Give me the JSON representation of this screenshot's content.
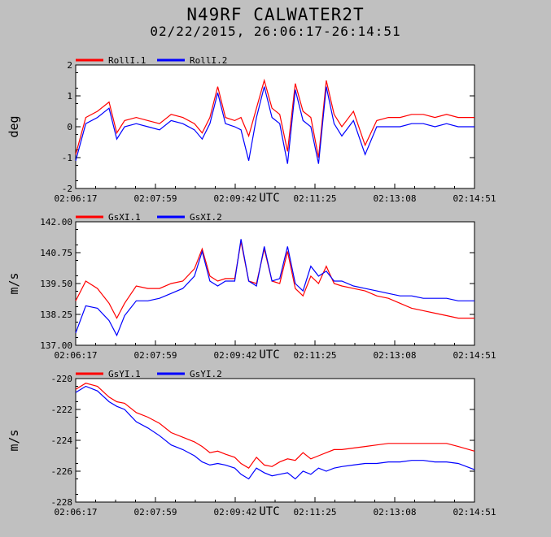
{
  "title": "N49RF CALWATER2T",
  "subtitle": "02/22/2015, 26:06:17-26:14:51",
  "colors": {
    "series1": "#ff0000",
    "series2": "#0000ff",
    "background": "#c0c0c0",
    "plot_bg": "#ffffff"
  },
  "chart_data": [
    {
      "type": "line",
      "ylabel": "deg",
      "xlabel": "UTC",
      "ylim": [
        -2,
        2
      ],
      "yticks": [
        "2",
        "1",
        "0",
        "-1",
        "-2"
      ],
      "xticks": [
        "02:06:17",
        "02:07:59",
        "02:09:42",
        "02:11:25",
        "02:13:08",
        "02:14:51"
      ],
      "grid": false,
      "legend": "top-left",
      "x": [
        "02:06:17",
        "02:06:30",
        "02:06:45",
        "02:07:00",
        "02:07:10",
        "02:07:20",
        "02:07:35",
        "02:07:50",
        "02:08:05",
        "02:08:20",
        "02:08:35",
        "02:08:50",
        "02:09:00",
        "02:09:10",
        "02:09:20",
        "02:09:30",
        "02:09:42",
        "02:09:50",
        "02:10:00",
        "02:10:10",
        "02:10:20",
        "02:10:30",
        "02:10:40",
        "02:10:50",
        "02:11:00",
        "02:11:10",
        "02:11:20",
        "02:11:30",
        "02:11:40",
        "02:11:50",
        "02:12:00",
        "02:12:15",
        "02:12:30",
        "02:12:45",
        "02:13:00",
        "02:13:15",
        "02:13:30",
        "02:13:45",
        "02:14:00",
        "02:14:15",
        "02:14:30",
        "02:14:51"
      ],
      "series": [
        {
          "name": "RollI.1",
          "values": [
            -0.9,
            0.3,
            0.5,
            0.8,
            -0.2,
            0.2,
            0.3,
            0.2,
            0.1,
            0.4,
            0.3,
            0.1,
            -0.2,
            0.3,
            1.3,
            0.3,
            0.2,
            0.3,
            -0.3,
            0.6,
            1.5,
            0.6,
            0.4,
            -0.8,
            1.4,
            0.5,
            0.3,
            -1.0,
            1.5,
            0.4,
            0.0,
            0.5,
            -0.6,
            0.2,
            0.3,
            0.3,
            0.4,
            0.4,
            0.3,
            0.4,
            0.3,
            0.3
          ]
        },
        {
          "name": "RollI.2",
          "values": [
            -1.1,
            0.1,
            0.3,
            0.6,
            -0.4,
            0.0,
            0.1,
            0.0,
            -0.1,
            0.2,
            0.1,
            -0.1,
            -0.4,
            0.1,
            1.1,
            0.1,
            0.0,
            -0.1,
            -1.1,
            0.3,
            1.3,
            0.3,
            0.1,
            -1.2,
            1.2,
            0.2,
            0.0,
            -1.2,
            1.3,
            0.1,
            -0.3,
            0.2,
            -0.9,
            0.0,
            0.0,
            0.0,
            0.1,
            0.1,
            0.0,
            0.1,
            0.0,
            0.0
          ]
        }
      ]
    },
    {
      "type": "line",
      "ylabel": "m/s",
      "xlabel": "UTC",
      "ylim": [
        137.0,
        142.0
      ],
      "yticks": [
        "142.00",
        "140.75",
        "139.50",
        "138.25",
        "137.00"
      ],
      "xticks": [
        "02:06:17",
        "02:07:59",
        "02:09:42",
        "02:11:25",
        "02:13:08",
        "02:14:51"
      ],
      "grid": false,
      "legend": "top-left",
      "x": [
        "02:06:17",
        "02:06:30",
        "02:06:45",
        "02:07:00",
        "02:07:10",
        "02:07:20",
        "02:07:35",
        "02:07:50",
        "02:08:05",
        "02:08:20",
        "02:08:35",
        "02:08:50",
        "02:09:00",
        "02:09:10",
        "02:09:20",
        "02:09:30",
        "02:09:42",
        "02:09:50",
        "02:10:00",
        "02:10:10",
        "02:10:20",
        "02:10:30",
        "02:10:40",
        "02:10:50",
        "02:11:00",
        "02:11:10",
        "02:11:20",
        "02:11:30",
        "02:11:40",
        "02:11:50",
        "02:12:00",
        "02:12:15",
        "02:12:30",
        "02:12:45",
        "02:13:00",
        "02:13:15",
        "02:13:30",
        "02:13:45",
        "02:14:00",
        "02:14:15",
        "02:14:30",
        "02:14:51"
      ],
      "series": [
        {
          "name": "GsXI.1",
          "values": [
            138.8,
            139.6,
            139.3,
            138.7,
            138.1,
            138.7,
            139.4,
            139.3,
            139.3,
            139.5,
            139.6,
            140.1,
            140.9,
            139.8,
            139.6,
            139.7,
            139.7,
            141.2,
            139.6,
            139.5,
            140.9,
            139.6,
            139.5,
            140.8,
            139.3,
            139.0,
            139.8,
            139.5,
            140.2,
            139.5,
            139.4,
            139.3,
            139.2,
            139.0,
            138.9,
            138.7,
            138.5,
            138.4,
            138.3,
            138.2,
            138.1,
            138.1
          ]
        },
        {
          "name": "GsXI.2",
          "values": [
            137.5,
            138.6,
            138.5,
            138.0,
            137.4,
            138.2,
            138.8,
            138.8,
            138.9,
            139.1,
            139.3,
            139.8,
            140.8,
            139.6,
            139.4,
            139.6,
            139.6,
            141.3,
            139.6,
            139.4,
            141.0,
            139.6,
            139.7,
            141.0,
            139.5,
            139.2,
            140.2,
            139.8,
            140.0,
            139.6,
            139.6,
            139.4,
            139.3,
            139.2,
            139.1,
            139.0,
            139.0,
            138.9,
            138.9,
            138.9,
            138.8,
            138.8
          ]
        }
      ]
    },
    {
      "type": "line",
      "ylabel": "m/s",
      "xlabel": "UTC",
      "ylim": [
        -228,
        -220
      ],
      "yticks": [
        "-220",
        "-222",
        "-224",
        "-226",
        "-228"
      ],
      "xticks": [
        "02:06:17",
        "02:07:59",
        "02:09:42",
        "02:11:25",
        "02:13:08",
        "02:14:51"
      ],
      "grid": false,
      "legend": "top-left",
      "x": [
        "02:06:17",
        "02:06:30",
        "02:06:45",
        "02:07:00",
        "02:07:10",
        "02:07:20",
        "02:07:35",
        "02:07:50",
        "02:08:05",
        "02:08:20",
        "02:08:35",
        "02:08:50",
        "02:09:00",
        "02:09:10",
        "02:09:20",
        "02:09:30",
        "02:09:42",
        "02:09:50",
        "02:10:00",
        "02:10:10",
        "02:10:20",
        "02:10:30",
        "02:10:40",
        "02:10:50",
        "02:11:00",
        "02:11:10",
        "02:11:20",
        "02:11:30",
        "02:11:40",
        "02:11:50",
        "02:12:00",
        "02:12:15",
        "02:12:30",
        "02:12:45",
        "02:13:00",
        "02:13:15",
        "02:13:30",
        "02:13:45",
        "02:14:00",
        "02:14:15",
        "02:14:30",
        "02:14:51"
      ],
      "series": [
        {
          "name": "GsYI.1",
          "values": [
            -220.7,
            -220.3,
            -220.5,
            -221.2,
            -221.5,
            -221.6,
            -222.2,
            -222.5,
            -222.9,
            -223.5,
            -223.8,
            -224.1,
            -224.4,
            -224.8,
            -224.7,
            -224.9,
            -225.1,
            -225.5,
            -225.8,
            -225.1,
            -225.6,
            -225.7,
            -225.4,
            -225.2,
            -225.3,
            -224.8,
            -225.2,
            -225.0,
            -224.8,
            -224.6,
            -224.6,
            -224.5,
            -224.4,
            -224.3,
            -224.2,
            -224.2,
            -224.2,
            -224.2,
            -224.2,
            -224.2,
            -224.4,
            -224.7
          ]
        },
        {
          "name": "GsYI.2",
          "values": [
            -220.9,
            -220.5,
            -220.8,
            -221.5,
            -221.8,
            -222.0,
            -222.8,
            -223.2,
            -223.7,
            -224.3,
            -224.6,
            -225.0,
            -225.4,
            -225.6,
            -225.5,
            -225.6,
            -225.8,
            -226.2,
            -226.5,
            -225.8,
            -226.1,
            -226.3,
            -226.2,
            -226.1,
            -226.5,
            -226.0,
            -226.2,
            -225.8,
            -226.0,
            -225.8,
            -225.7,
            -225.6,
            -225.5,
            -225.5,
            -225.4,
            -225.4,
            -225.3,
            -225.3,
            -225.4,
            -225.4,
            -225.5,
            -225.9
          ]
        }
      ]
    }
  ]
}
